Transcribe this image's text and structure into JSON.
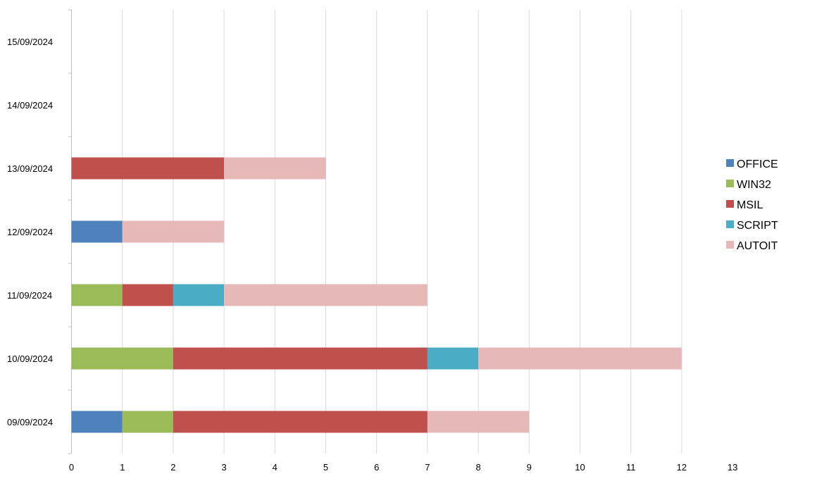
{
  "chart_data": {
    "type": "bar",
    "orientation": "horizontal",
    "stacked": true,
    "title": "",
    "xlabel": "",
    "ylabel": "",
    "categories": [
      "09/09/2024",
      "10/09/2024",
      "11/09/2024",
      "12/09/2024",
      "13/09/2024",
      "14/09/2024",
      "15/09/2024"
    ],
    "series": [
      {
        "name": "OFFICE",
        "color": "#4f81bd",
        "values": [
          1,
          0,
          0,
          1,
          0,
          0,
          0
        ]
      },
      {
        "name": "WIN32",
        "color": "#9bbb59",
        "values": [
          1,
          2,
          1,
          0,
          0,
          0,
          0
        ]
      },
      {
        "name": "MSIL",
        "color": "#c0504d",
        "values": [
          5,
          5,
          1,
          0,
          3,
          0,
          0
        ]
      },
      {
        "name": "SCRIPT",
        "color": "#4bacc6",
        "values": [
          0,
          1,
          1,
          0,
          0,
          0,
          0
        ]
      },
      {
        "name": "AUTOIT",
        "color": "#e6b9b8",
        "values": [
          2,
          4,
          4,
          2,
          2,
          0,
          0
        ]
      }
    ],
    "xlim": [
      0,
      13
    ],
    "x_ticks": [
      "0",
      "1",
      "2",
      "3",
      "4",
      "5",
      "6",
      "7",
      "8",
      "9",
      "10",
      "11",
      "12",
      "13"
    ],
    "grid": "vertical",
    "legend_position": "right"
  }
}
